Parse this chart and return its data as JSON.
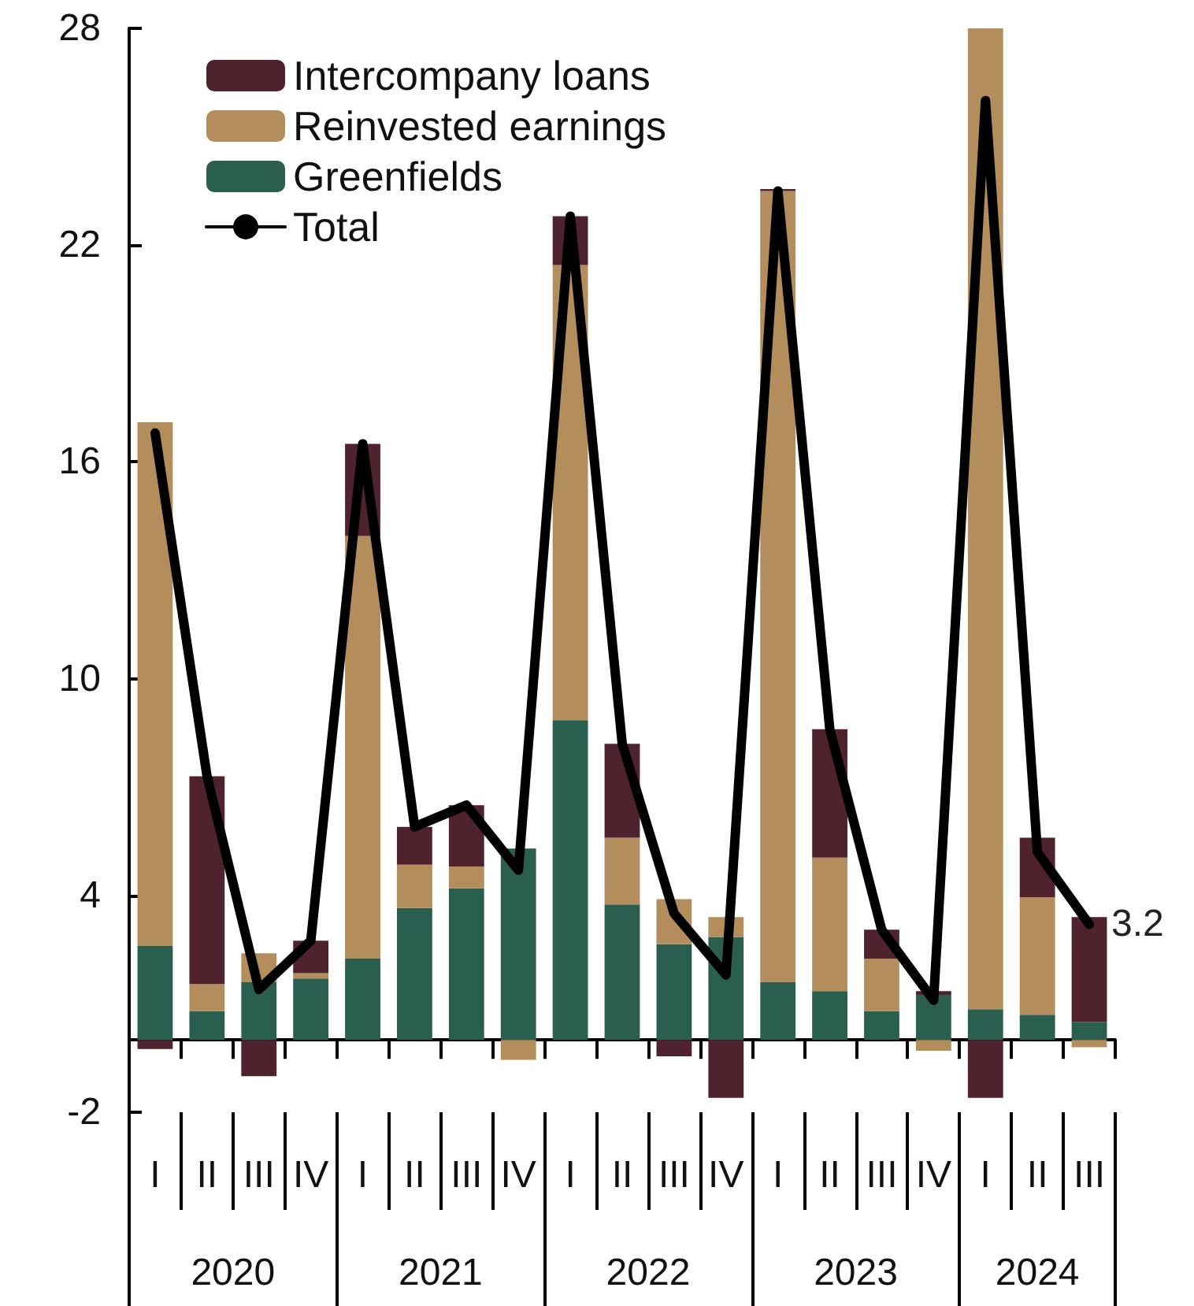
{
  "chart_data": {
    "type": "bar",
    "stacked": true,
    "categories": [
      "I",
      "II",
      "III",
      "IV",
      "I",
      "II",
      "III",
      "IV",
      "I",
      "II",
      "III",
      "IV",
      "I",
      "II",
      "III",
      "IV",
      "I",
      "II",
      "III"
    ],
    "annotations": [
      "2020",
      "2021",
      "2022",
      "2023",
      "2024"
    ],
    "series": [
      {
        "name": "Greenfields",
        "color": "#2a5e4e",
        "values": [
          2.6,
          0.8,
          1.6,
          1.7,
          2.25,
          3.65,
          4.2,
          5.3,
          8.85,
          3.75,
          2.65,
          2.85,
          1.6,
          1.35,
          0.8,
          1.25,
          0.85,
          0.7,
          0.5
        ]
      },
      {
        "name": "Reinvested earnings",
        "color": "#b38d5c",
        "values": [
          14.5,
          0.75,
          0.8,
          0.15,
          11.7,
          1.2,
          0.6,
          -0.55,
          12.6,
          1.85,
          1.25,
          0.55,
          21.9,
          3.7,
          1.45,
          -0.3,
          27.15,
          3.25,
          -0.2
        ]
      },
      {
        "name": "Intercompany loans",
        "color": "#4e232d",
        "values": [
          -0.25,
          5.75,
          -1.0,
          0.9,
          2.55,
          1.05,
          1.7,
          null,
          1.35,
          2.6,
          -0.45,
          -1.6,
          0.05,
          3.55,
          0.8,
          0.1,
          -1.6,
          1.65,
          2.9
        ]
      },
      {
        "name": "Total",
        "type": "line",
        "color": "#000000",
        "values": [
          16.8,
          7.3,
          1.4,
          2.75,
          16.5,
          5.9,
          6.5,
          4.7,
          22.8,
          8.2,
          3.5,
          1.8,
          23.5,
          8.6,
          3.05,
          1.1,
          26.0,
          5.2,
          3.2
        ],
        "value_labels": [
          null,
          null,
          null,
          null,
          null,
          null,
          null,
          null,
          null,
          null,
          null,
          null,
          null,
          null,
          null,
          null,
          null,
          null,
          "3.2"
        ]
      }
    ],
    "ylim": [
      -2,
      28
    ],
    "yticks": [
      -2,
      4,
      10,
      16,
      22,
      28
    ],
    "grid": false,
    "legend": "top left",
    "marker": "none",
    "line_style": "solid"
  }
}
